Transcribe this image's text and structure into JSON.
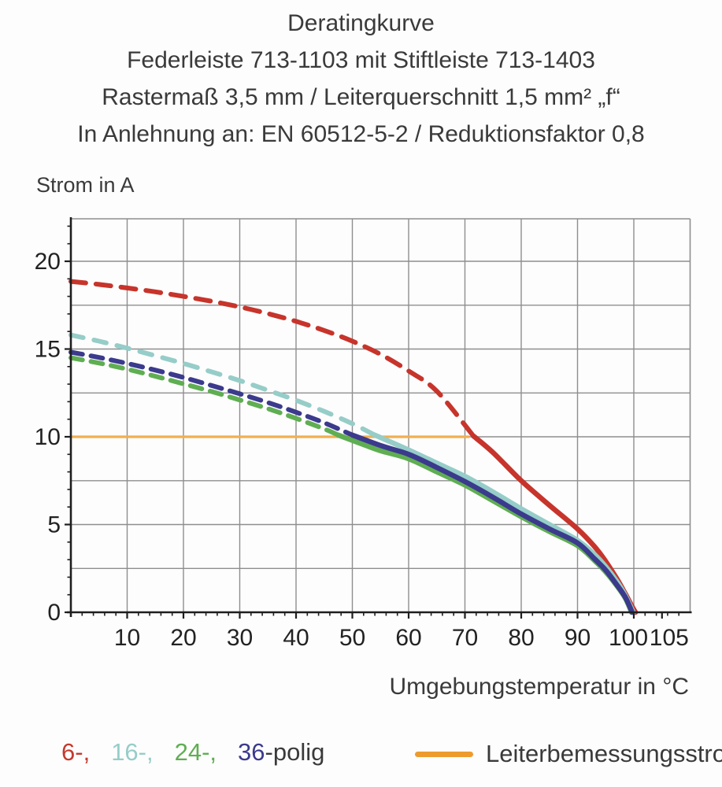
{
  "header": {
    "line1": "Deratingkurve",
    "line2": "Federleiste 713-1103 mit Stiftleiste 713-1403",
    "line3": "Rastermaß 3,5 mm / Leiterquerschnitt 1,5 mm² „f“",
    "line4": "In Anlehnung an: EN 60512-5-2 / Reduktionsfaktor 0,8"
  },
  "legend": {
    "pole_items": [
      {
        "label": "6-,",
        "color": "#c43a2e"
      },
      {
        "label": "16-,",
        "color": "#96cdc8"
      },
      {
        "label": "24-,",
        "color": "#5fae52"
      },
      {
        "label": "36",
        "color": "#3b3a8d"
      }
    ],
    "pole_suffix": "-polig",
    "pole_suffix_color": "#3a3a3a",
    "rated_current": {
      "label": "Leiterbemessungsstrom",
      "swatch_color": "#ee9b2d"
    }
  },
  "chart_data": {
    "type": "line",
    "title": "Deratingkurve",
    "xlabel": "Umgebungstemperatur in °C",
    "ylabel": "Strom in A",
    "xlim": [
      0,
      110
    ],
    "ylim": [
      0,
      22.4
    ],
    "x_major_ticks": [
      10,
      20,
      30,
      40,
      50,
      60,
      70,
      80,
      90,
      100,
      105
    ],
    "x_minor_step": 2,
    "y_major_ticks": [
      0,
      5,
      10,
      15,
      20
    ],
    "y_minor_step": 1,
    "x_gridlines": [
      10,
      20,
      30,
      40,
      50,
      60,
      70,
      80,
      90,
      100
    ],
    "y_gridlines": [
      2.5,
      5,
      7.5,
      10,
      12.5,
      15,
      17.5,
      20
    ],
    "grid_color": "#8e8e8e",
    "axis_color": "#1e1e1e",
    "tick_label_color": "#222222",
    "rated_current_line": {
      "y": 10,
      "x_start": 0,
      "x_end": 70.8,
      "color": "#f2ae50",
      "label": "Leiterbemessungsstrom"
    },
    "series": [
      {
        "name": "6-polig",
        "color": "#c7342b",
        "dash_pattern": "19 13",
        "dashed": [
          [
            0,
            18.85
          ],
          [
            5,
            18.68
          ],
          [
            10,
            18.48
          ],
          [
            15,
            18.26
          ],
          [
            20,
            18.0
          ],
          [
            25,
            17.72
          ],
          [
            30,
            17.4
          ],
          [
            35,
            17.02
          ],
          [
            40,
            16.58
          ],
          [
            45,
            16.06
          ],
          [
            50,
            15.45
          ],
          [
            55,
            14.7
          ],
          [
            60,
            13.75
          ],
          [
            65,
            12.6
          ],
          [
            71.5,
            10.05
          ]
        ],
        "solid": [
          [
            71.5,
            10.05
          ],
          [
            75,
            9.1
          ],
          [
            80,
            7.5
          ],
          [
            85,
            6.1
          ],
          [
            90,
            4.75
          ],
          [
            93,
            3.75
          ],
          [
            95,
            2.9
          ],
          [
            97,
            1.9
          ],
          [
            98.5,
            1.05
          ],
          [
            99.5,
            0.45
          ],
          [
            100.3,
            0
          ]
        ]
      },
      {
        "name": "16-polig",
        "color": "#96cdc8",
        "dash_pattern": "16 14",
        "dashed": [
          [
            0,
            15.8
          ],
          [
            5,
            15.45
          ],
          [
            10,
            15.05
          ],
          [
            15,
            14.62
          ],
          [
            20,
            14.18
          ],
          [
            25,
            13.7
          ],
          [
            30,
            13.2
          ],
          [
            35,
            12.65
          ],
          [
            40,
            12.08
          ],
          [
            45,
            11.45
          ],
          [
            50,
            10.75
          ],
          [
            54,
            10.1
          ]
        ],
        "solid": [
          [
            54,
            10.1
          ],
          [
            60,
            9.25
          ],
          [
            65,
            8.5
          ],
          [
            70,
            7.75
          ],
          [
            75,
            6.85
          ],
          [
            80,
            5.9
          ],
          [
            85,
            5.0
          ],
          [
            90,
            4.1
          ],
          [
            93,
            3.3
          ],
          [
            95,
            2.6
          ],
          [
            97,
            1.75
          ],
          [
            98.5,
            0.95
          ],
          [
            99.9,
            0
          ]
        ]
      },
      {
        "name": "24-polig",
        "color": "#5fae52",
        "dash_pattern": "15 11",
        "dashed": [
          [
            0,
            14.5
          ],
          [
            5,
            14.2
          ],
          [
            10,
            13.85
          ],
          [
            15,
            13.45
          ],
          [
            20,
            13.02
          ],
          [
            25,
            12.58
          ],
          [
            30,
            12.1
          ],
          [
            35,
            11.6
          ],
          [
            40,
            11.05
          ],
          [
            45,
            10.45
          ],
          [
            47.5,
            10.1
          ]
        ],
        "solid": [
          [
            47.5,
            10.1
          ],
          [
            52,
            9.55
          ],
          [
            55,
            9.2
          ],
          [
            60,
            8.75
          ],
          [
            65,
            8.0
          ],
          [
            70,
            7.25
          ],
          [
            75,
            6.35
          ],
          [
            80,
            5.45
          ],
          [
            85,
            4.6
          ],
          [
            90,
            3.8
          ],
          [
            93,
            2.95
          ],
          [
            95,
            2.3
          ],
          [
            97,
            1.5
          ],
          [
            98.5,
            0.8
          ],
          [
            99.6,
            0
          ]
        ]
      },
      {
        "name": "36-polig",
        "color": "#3b3a8d",
        "dash_pattern": "15 11",
        "dashed": [
          [
            0,
            14.82
          ],
          [
            5,
            14.52
          ],
          [
            10,
            14.18
          ],
          [
            15,
            13.8
          ],
          [
            20,
            13.38
          ],
          [
            25,
            12.92
          ],
          [
            30,
            12.45
          ],
          [
            35,
            11.95
          ],
          [
            40,
            11.4
          ],
          [
            45,
            10.8
          ],
          [
            50,
            10.1
          ]
        ],
        "solid": [
          [
            50,
            10.1
          ],
          [
            55,
            9.5
          ],
          [
            60,
            9.0
          ],
          [
            65,
            8.25
          ],
          [
            70,
            7.45
          ],
          [
            75,
            6.55
          ],
          [
            80,
            5.6
          ],
          [
            85,
            4.75
          ],
          [
            90,
            3.95
          ],
          [
            93,
            3.05
          ],
          [
            95,
            2.4
          ],
          [
            97,
            1.55
          ],
          [
            98.5,
            0.85
          ],
          [
            99.7,
            0
          ]
        ]
      }
    ],
    "legend_position": "bottom",
    "grid": true
  }
}
